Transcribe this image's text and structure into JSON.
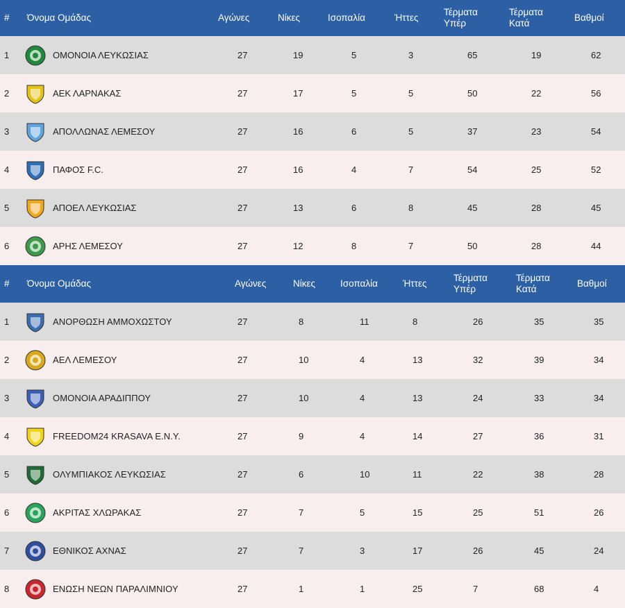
{
  "headers": {
    "pos": "#",
    "team": "Όνομα Ομάδας",
    "played": "Αγώνες",
    "wins": "Νίκες",
    "draws": "Ισοπαλία",
    "losses": "Ήττες",
    "goals_for_1": "Τέρματα",
    "goals_for_2": "Υπέρ",
    "goals_against_1": "Τέρματα",
    "goals_against_2": "Κατά",
    "points": "Βαθμοί"
  },
  "championship_group": [
    {
      "pos": "1",
      "team": "ΟΜΟΝΟΙΑ ΛΕΥΚΩΣΙΑΣ",
      "logo": "omonoia-logo",
      "color": "#1f8a3b",
      "played": "27",
      "wins": "19",
      "draws": "5",
      "losses": "3",
      "gf": "65",
      "ga": "19",
      "pts": "62"
    },
    {
      "pos": "2",
      "team": "ΑΕΚ ΛΑΡΝΑΚΑΣ",
      "logo": "aek-larnaca-logo",
      "color": "#e5c315",
      "played": "27",
      "wins": "17",
      "draws": "5",
      "losses": "5",
      "gf": "50",
      "ga": "22",
      "pts": "56"
    },
    {
      "pos": "3",
      "team": "ΑΠΟΛΛΩΝΑΣ ΛΕΜΕΣΟΥ",
      "logo": "apollon-logo",
      "color": "#5fa4dc",
      "played": "27",
      "wins": "16",
      "draws": "6",
      "losses": "5",
      "gf": "37",
      "ga": "23",
      "pts": "54"
    },
    {
      "pos": "4",
      "team": "ΠΑΦΟΣ F.C.",
      "logo": "pafos-logo",
      "color": "#2d6fb5",
      "played": "27",
      "wins": "16",
      "draws": "4",
      "losses": "7",
      "gf": "54",
      "ga": "25",
      "pts": "52"
    },
    {
      "pos": "5",
      "team": "ΑΠΟΕΛ ΛΕΥΚΩΣΙΑΣ",
      "logo": "apoel-logo",
      "color": "#f2a81d",
      "played": "27",
      "wins": "13",
      "draws": "6",
      "losses": "8",
      "gf": "45",
      "ga": "28",
      "pts": "45"
    },
    {
      "pos": "6",
      "team": "ΑΡΗΣ ΛΕΜΕΣΟΥ",
      "logo": "aris-logo",
      "color": "#3d9b4a",
      "played": "27",
      "wins": "12",
      "draws": "8",
      "losses": "7",
      "gf": "50",
      "ga": "28",
      "pts": "44"
    }
  ],
  "relegation_group": [
    {
      "pos": "1",
      "team": "ΑΝΟΡΘΩΣΗ ΑΜΜΟΧΩΣΤΟΥ",
      "logo": "anorthosis-logo",
      "color": "#3a6cb0",
      "played": "27",
      "wins": "8",
      "draws": "11",
      "losses": "8",
      "gf": "26",
      "ga": "35",
      "pts": "35"
    },
    {
      "pos": "2",
      "team": "ΑΕΛ ΛΕΜΕΣΟΥ",
      "logo": "ael-logo",
      "color": "#d9a81c",
      "played": "27",
      "wins": "10",
      "draws": "4",
      "losses": "13",
      "gf": "32",
      "ga": "39",
      "pts": "34"
    },
    {
      "pos": "3",
      "team": "ΟΜΟΝΟΙΑ ΑΡΑΔΙΠΠΟΥ",
      "logo": "omonoia-aradippou-logo",
      "color": "#3d5fb8",
      "played": "27",
      "wins": "10",
      "draws": "4",
      "losses": "13",
      "gf": "24",
      "ga": "33",
      "pts": "34"
    },
    {
      "pos": "4",
      "team": "FREEDOM24 KRASAVA E.N.Y.",
      "logo": "krasava-logo",
      "color": "#f1d418",
      "played": "27",
      "wins": "9",
      "draws": "4",
      "losses": "14",
      "gf": "27",
      "ga": "36",
      "pts": "31"
    },
    {
      "pos": "5",
      "team": "ΟΛΥΜΠΙΑΚΟΣ ΛΕΥΚΩΣΙΑΣ",
      "logo": "olympiakos-logo",
      "color": "#1f6b34",
      "played": "27",
      "wins": "6",
      "draws": "10",
      "losses": "11",
      "gf": "22",
      "ga": "38",
      "pts": "28"
    },
    {
      "pos": "6",
      "team": "ΑΚΡΙΤΑΣ ΧΛΩΡΑΚΑΣ",
      "logo": "akritas-logo",
      "color": "#2aa35c",
      "played": "27",
      "wins": "7",
      "draws": "5",
      "losses": "15",
      "gf": "25",
      "ga": "51",
      "pts": "26"
    },
    {
      "pos": "7",
      "team": "ΕΘΝΙΚΟΣ ΑΧΝΑΣ",
      "logo": "ethnikos-logo",
      "color": "#2f4f9e",
      "played": "27",
      "wins": "7",
      "draws": "3",
      "losses": "17",
      "gf": "26",
      "ga": "45",
      "pts": "24"
    },
    {
      "pos": "8",
      "team": "ΕΝΩΣΗ ΝΕΩΝ ΠΑΡΑΛΙΜΝΙΟΥ",
      "logo": "enp-logo",
      "color": "#c8282d",
      "played": "27",
      "wins": "1",
      "draws": "1",
      "losses": "25",
      "gf": "7",
      "ga": "68",
      "pts": "4"
    }
  ]
}
